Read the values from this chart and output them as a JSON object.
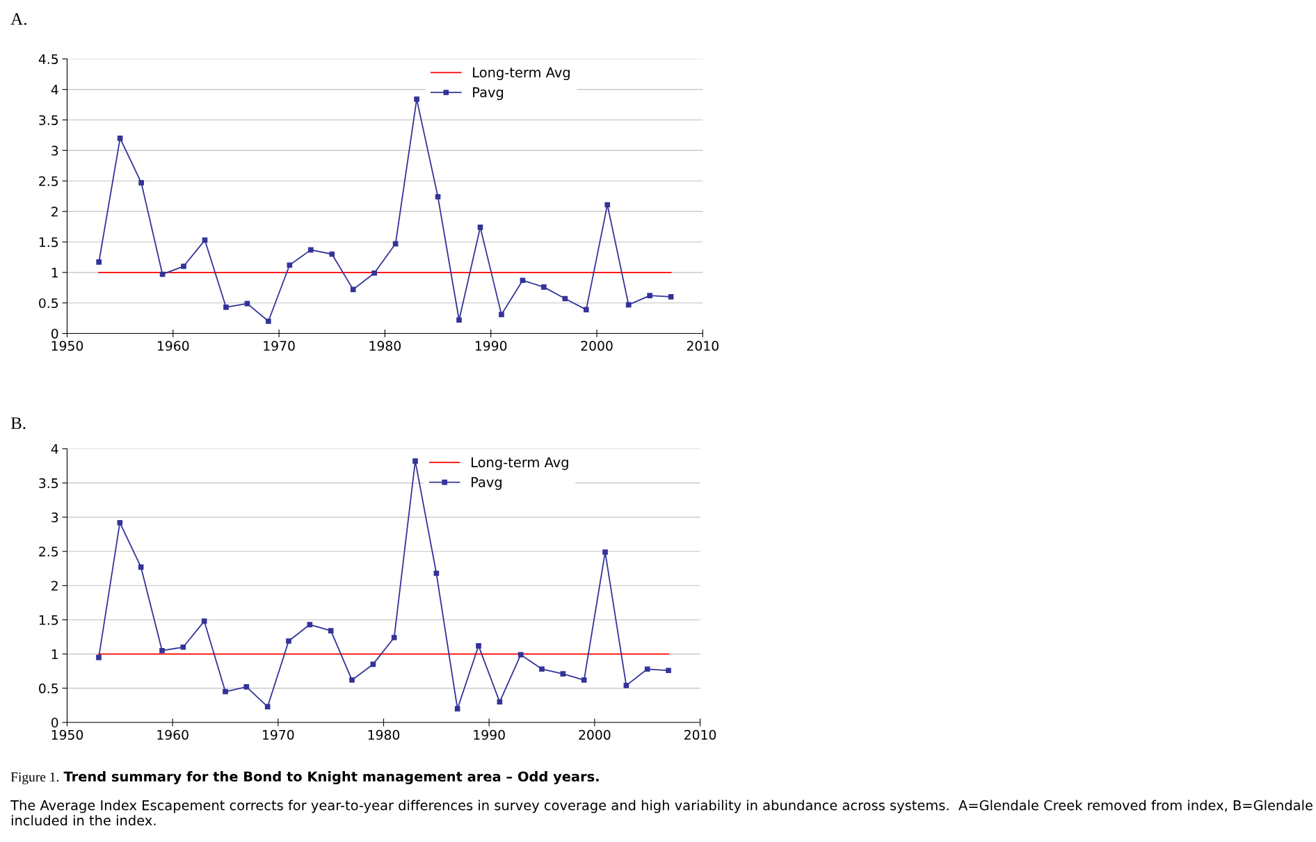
{
  "chart_data": [
    {
      "type": "line",
      "annotations": [
        "A."
      ],
      "x": [
        1953,
        1955,
        1957,
        1959,
        1961,
        1963,
        1965,
        1967,
        1969,
        1971,
        1973,
        1975,
        1977,
        1979,
        1981,
        1983,
        1985,
        1987,
        1989,
        1991,
        1993,
        1995,
        1997,
        1999,
        2001,
        2003,
        2005,
        2007
      ],
      "series": [
        {
          "name": "Long-term Avg",
          "color": "#ff0000",
          "marker": "none",
          "values": [
            1,
            1,
            1,
            1,
            1,
            1,
            1,
            1,
            1,
            1,
            1,
            1,
            1,
            1,
            1,
            1,
            1,
            1,
            1,
            1,
            1,
            1,
            1,
            1,
            1,
            1,
            1,
            1
          ]
        },
        {
          "name": "Pavg",
          "color": "#333399",
          "marker": "square",
          "values": [
            1.17,
            3.2,
            2.47,
            0.97,
            1.1,
            1.53,
            0.43,
            0.49,
            0.2,
            1.12,
            1.37,
            1.3,
            0.72,
            0.99,
            1.47,
            3.84,
            2.24,
            0.22,
            1.74,
            0.31,
            0.87,
            0.76,
            0.57,
            0.39,
            2.11,
            0.47,
            0.62,
            0.6
          ]
        }
      ],
      "xlim": [
        1950,
        2010
      ],
      "xticks": [
        1950,
        1960,
        1970,
        1980,
        1990,
        2000,
        2010
      ],
      "ylim": [
        0,
        4.5
      ],
      "yticks": [
        0,
        0.5,
        1,
        1.5,
        2,
        2.5,
        3,
        3.5,
        4,
        4.5
      ],
      "grid": "y",
      "legend": "top"
    },
    {
      "type": "line",
      "annotations": [
        "B.",
        "Figure 1.",
        "Trend summary for the Bond to Knight management area – Odd years.",
        "The Average Index Escapement corrects for year-to-year differences in survey coverage and high variability in abundance across systems.  A=Glendale Creek removed from index, B=Glendale included in the index."
      ],
      "x": [
        1953,
        1955,
        1957,
        1959,
        1961,
        1963,
        1965,
        1967,
        1969,
        1971,
        1973,
        1975,
        1977,
        1979,
        1981,
        1983,
        1985,
        1987,
        1989,
        1991,
        1993,
        1995,
        1997,
        1999,
        2001,
        2003,
        2005,
        2007
      ],
      "series": [
        {
          "name": "Long-term Avg",
          "color": "#ff0000",
          "marker": "none",
          "values": [
            1,
            1,
            1,
            1,
            1,
            1,
            1,
            1,
            1,
            1,
            1,
            1,
            1,
            1,
            1,
            1,
            1,
            1,
            1,
            1,
            1,
            1,
            1,
            1,
            1,
            1,
            1,
            1
          ]
        },
        {
          "name": "Pavg",
          "color": "#333399",
          "marker": "square",
          "values": [
            0.95,
            2.92,
            2.27,
            1.05,
            1.1,
            1.48,
            0.45,
            0.52,
            0.23,
            1.19,
            1.43,
            1.34,
            0.62,
            0.85,
            1.24,
            3.82,
            2.18,
            0.2,
            1.12,
            0.3,
            0.99,
            0.78,
            0.71,
            0.62,
            2.49,
            0.54,
            0.78,
            0.76
          ]
        }
      ],
      "xlim": [
        1950,
        2010
      ],
      "xticks": [
        1950,
        1960,
        1970,
        1980,
        1990,
        2000,
        2010
      ],
      "ylim": [
        0,
        4
      ],
      "yticks": [
        0,
        0.5,
        1,
        1.5,
        2,
        2.5,
        3,
        3.5,
        4
      ],
      "grid": "y",
      "legend": "top"
    }
  ]
}
